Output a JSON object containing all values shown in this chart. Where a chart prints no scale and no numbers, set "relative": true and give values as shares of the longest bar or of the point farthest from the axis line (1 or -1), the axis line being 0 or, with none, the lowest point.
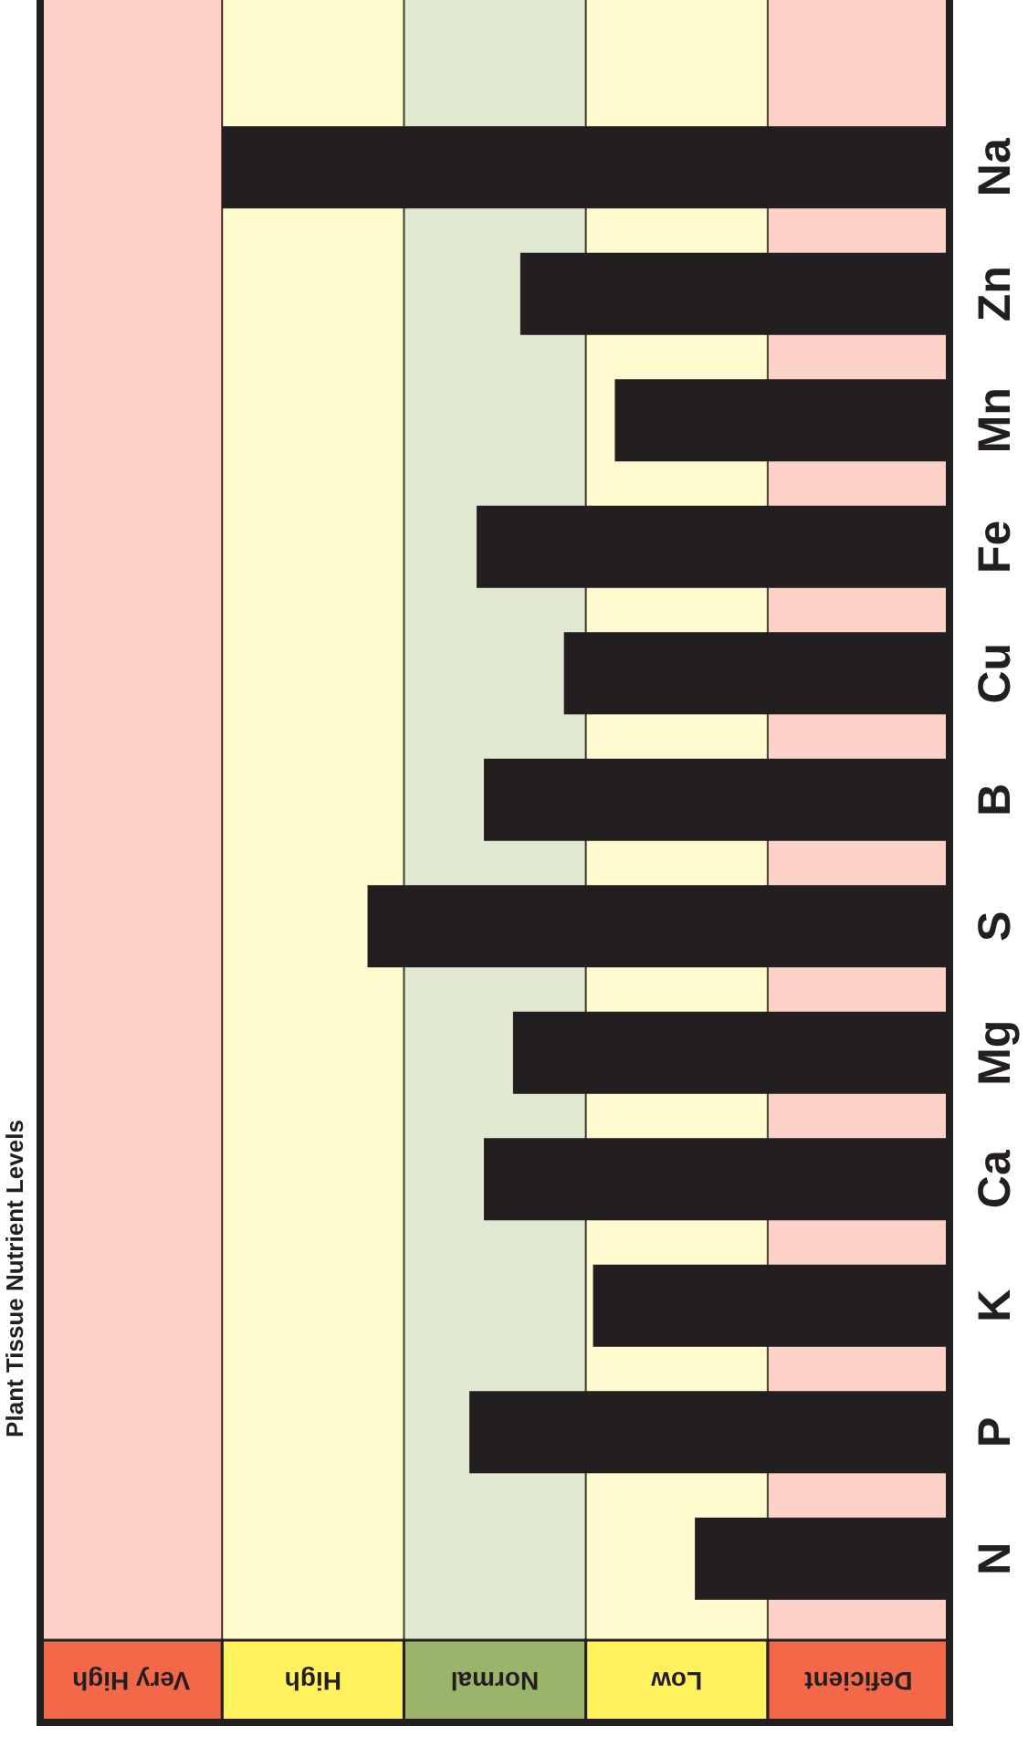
{
  "chart_data": {
    "type": "bar",
    "orientation": "horizontal",
    "relative": true,
    "title": "Plant Tissue Nutrient Levels",
    "categories": [
      "Na",
      "Zn",
      "Mn",
      "Fe",
      "Cu",
      "B",
      "S",
      "Mg",
      "Ca",
      "K",
      "P",
      "N"
    ],
    "values": [
      1,
      0.59,
      0.46,
      0.65,
      0.53,
      0.64,
      0.8,
      0.6,
      0.64,
      0.49,
      0.66,
      0.35
    ],
    "color": "#231f20",
    "bands": [
      {
        "axis": "x",
        "from": 0,
        "to": 0.25,
        "label": "Deficient",
        "color": "#f26849"
      },
      {
        "axis": "x",
        "from": 0.25,
        "to": 0.5,
        "label": "Low",
        "color": "#fff25c"
      },
      {
        "axis": "x",
        "from": 0.5,
        "to": 0.75,
        "label": "Normal",
        "color": "#9ab469"
      },
      {
        "axis": "x",
        "from": 0.75,
        "to": 1,
        "label": "High",
        "color": "#fff25c"
      },
      {
        "axis": "x",
        "from": 1,
        "to": 1.25,
        "label": "Very High",
        "color": "#f26849"
      }
    ],
    "grid": false
  }
}
